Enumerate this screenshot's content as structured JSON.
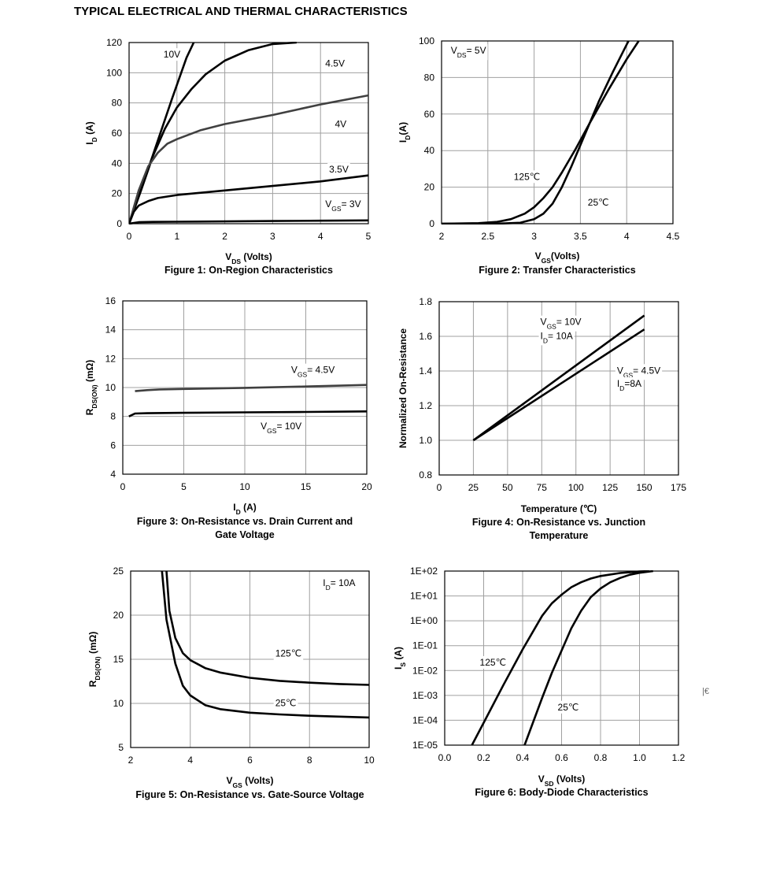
{
  "page": {
    "title": "TYPICAL ELECTRICAL AND THERMAL CHARACTERISTICS",
    "stray_mark": "|€"
  },
  "chart_data": [
    {
      "id": "fig1",
      "type": "line",
      "caption": "Figure 1: On-Region Characteristics",
      "xlabel_main": "V",
      "xlabel_sub": "DS",
      "xlabel_rest": " (Volts)",
      "ylabel_main": "I",
      "ylabel_sub": "D",
      "ylabel_rest": " (A)",
      "xlim": [
        0,
        5
      ],
      "ylim": [
        0,
        120
      ],
      "xticks": [
        "0",
        "1",
        "2",
        "3",
        "4",
        "5"
      ],
      "yticks": [
        "0",
        "20",
        "40",
        "60",
        "80",
        "100",
        "120"
      ],
      "series": [
        {
          "name": "10V",
          "x": [
            0,
            0.3,
            0.6,
            0.9,
            1.2,
            1.35
          ],
          "y": [
            0,
            27,
            55,
            83,
            110,
            120
          ]
        },
        {
          "name": "4.5V",
          "x": [
            0,
            0.25,
            0.5,
            0.75,
            1,
            1.3,
            1.6,
            2,
            2.5,
            3,
            3.5
          ],
          "y": [
            0,
            22,
            45,
            63,
            77,
            89,
            99,
            108,
            115,
            119,
            120
          ]
        },
        {
          "name": "4V",
          "x": [
            0,
            0.2,
            0.4,
            0.6,
            0.8,
            1,
            1.5,
            2,
            3,
            4,
            5
          ],
          "y": [
            0,
            22,
            38,
            47,
            53,
            56,
            62,
            66,
            72,
            79,
            85
          ]
        },
        {
          "name": "3.5V",
          "x": [
            0,
            0.1,
            0.2,
            0.4,
            0.6,
            1,
            2,
            3,
            4,
            5
          ],
          "y": [
            0,
            8,
            12,
            15,
            17,
            19,
            22,
            25,
            28,
            32
          ]
        },
        {
          "name": "V_GS= 3V",
          "x": [
            0,
            0.2,
            0.5,
            1,
            2,
            3,
            4,
            5
          ],
          "y": [
            0,
            1,
            1.2,
            1.3,
            1.5,
            1.8,
            2,
            2.2
          ]
        }
      ],
      "labels": [
        {
          "text": "10V",
          "x": 0.72,
          "y": 110
        },
        {
          "text": "4.5V",
          "x": 4.1,
          "y": 104
        },
        {
          "text": "4V",
          "x": 4.3,
          "y": 64
        },
        {
          "text": "3.5V",
          "x": 4.18,
          "y": 34
        },
        {
          "main": "V",
          "sub": "GS",
          "rest": "= 3V",
          "x": 4.1,
          "y": 11
        }
      ]
    },
    {
      "id": "fig2",
      "type": "line",
      "caption": "Figure 2: Transfer Characteristics",
      "xlabel_main": "V",
      "xlabel_sub": "GS",
      "xlabel_rest": "(Volts)",
      "ylabel_main": "I",
      "ylabel_sub": "D",
      "ylabel_rest": "(A)",
      "xlim": [
        2,
        4.5
      ],
      "ylim": [
        0,
        100
      ],
      "xticks": [
        "2",
        "2.5",
        "3",
        "3.5",
        "4",
        "4.5"
      ],
      "yticks": [
        "0",
        "20",
        "40",
        "60",
        "80",
        "100"
      ],
      "series": [
        {
          "name": "125℃",
          "x": [
            2,
            2.4,
            2.6,
            2.75,
            2.9,
            3,
            3.1,
            3.2,
            3.3,
            3.45,
            3.6,
            3.8,
            4,
            4.13
          ],
          "y": [
            0,
            0.3,
            1,
            2.5,
            5.5,
            9,
            14,
            20,
            28,
            41,
            55,
            73,
            90,
            100
          ]
        },
        {
          "name": "25℃",
          "x": [
            2,
            2.6,
            2.85,
            3,
            3.1,
            3.2,
            3.3,
            3.4,
            3.5,
            3.6,
            3.7,
            3.85,
            4,
            4.02
          ],
          "y": [
            0,
            0,
            0.5,
            2.5,
            5.5,
            11,
            20,
            31,
            43,
            55,
            67,
            83,
            98,
            100
          ]
        }
      ],
      "labels": [
        {
          "main": "V",
          "sub": "DS",
          "rest": "= 5V",
          "x": 2.1,
          "y": 93
        },
        {
          "text": "125℃",
          "x": 2.78,
          "y": 24
        },
        {
          "text": "25℃",
          "x": 3.58,
          "y": 10
        }
      ]
    },
    {
      "id": "fig3",
      "type": "line",
      "caption": "Figure 3: On-Resistance vs. Drain Current and",
      "caption2": "Gate Voltage",
      "xlabel_main": "I",
      "xlabel_sub": "D",
      "xlabel_rest": " (A)",
      "ylabel_main": "R",
      "ylabel_sub": "DS(ON)",
      "ylabel_rest": " (mΩ)",
      "xlim": [
        0,
        20
      ],
      "ylim": [
        4,
        16
      ],
      "xticks": [
        "0",
        "5",
        "10",
        "15",
        "20"
      ],
      "yticks": [
        "4",
        "6",
        "8",
        "10",
        "12",
        "14",
        "16"
      ],
      "series": [
        {
          "name": "V_GS= 4.5V",
          "x": [
            1,
            2,
            3,
            5,
            10,
            15,
            20
          ],
          "y": [
            9.75,
            9.82,
            9.87,
            9.9,
            9.98,
            10.07,
            10.18
          ]
        },
        {
          "name": "V_GS= 10V",
          "x": [
            0.5,
            1,
            2,
            5,
            10,
            15,
            20
          ],
          "y": [
            8,
            8.2,
            8.22,
            8.25,
            8.28,
            8.31,
            8.35
          ]
        }
      ],
      "labels": [
        {
          "main": "V",
          "sub": "GS",
          "rest": "= 4.5V",
          "x": 13.8,
          "y": 11.0
        },
        {
          "main": "V",
          "sub": "GS",
          "rest": "= 10V",
          "x": 11.3,
          "y": 7.1
        }
      ]
    },
    {
      "id": "fig4",
      "type": "line",
      "caption": "Figure 4: On-Resistance vs. Junction",
      "caption2": "Temperature",
      "xlabel_main": "Temperature (℃)",
      "xlabel_sub": "",
      "xlabel_rest": "",
      "ylabel_main": "Normalized On-Resistance",
      "ylabel_sub": "",
      "ylabel_rest": "",
      "xlim": [
        0,
        175
      ],
      "ylim": [
        0.8,
        1.8
      ],
      "xticks": [
        "0",
        "25",
        "50",
        "75",
        "100",
        "125",
        "150",
        "175"
      ],
      "yticks": [
        "0.8",
        "1.0",
        "1.2",
        "1.4",
        "1.6",
        "1.8"
      ],
      "series": [
        {
          "name": "V_GS= 10V, I_D= 10A",
          "x": [
            25,
            150
          ],
          "y": [
            1.0,
            1.72
          ]
        },
        {
          "name": "V_GS= 4.5V, I_D=8A",
          "x": [
            25,
            150
          ],
          "y": [
            1.0,
            1.64
          ]
        }
      ],
      "labels": [
        {
          "main": "V",
          "sub": "GS",
          "rest": "= 10V",
          "x": 74,
          "y": 1.665
        },
        {
          "main": "I",
          "sub": "D",
          "rest": "= 10A",
          "x": 74,
          "y": 1.585
        },
        {
          "main": "V",
          "sub": "GS",
          "rest": "= 4.5V",
          "x": 130,
          "y": 1.385
        },
        {
          "main": "I",
          "sub": "D",
          "rest": "=8A",
          "x": 130,
          "y": 1.31
        }
      ]
    },
    {
      "id": "fig5",
      "type": "line",
      "caption": "Figure 5: On-Resistance vs. Gate-Source Voltage",
      "xlabel_main": "V",
      "xlabel_sub": "GS",
      "xlabel_rest": " (Volts)",
      "ylabel_main": "R",
      "ylabel_sub": "DS(ON)",
      "ylabel_rest": " (mΩ)",
      "xlim": [
        2,
        10
      ],
      "ylim": [
        5,
        25
      ],
      "xticks": [
        "2",
        "4",
        "6",
        "8",
        "10"
      ],
      "yticks": [
        "5",
        "10",
        "15",
        "20",
        "25"
      ],
      "series": [
        {
          "name": "125℃",
          "x": [
            3.2,
            3.3,
            3.5,
            3.75,
            4,
            4.5,
            5,
            6,
            7,
            8,
            9,
            10
          ],
          "y": [
            25,
            20.5,
            17.4,
            15.7,
            14.9,
            14,
            13.5,
            12.9,
            12.55,
            12.35,
            12.2,
            12.1
          ]
        },
        {
          "name": "25℃",
          "x": [
            3.05,
            3.2,
            3.5,
            3.75,
            4,
            4.5,
            5,
            6,
            7,
            8,
            9,
            10
          ],
          "y": [
            25,
            19.5,
            14.5,
            12,
            10.9,
            9.8,
            9.35,
            8.95,
            8.75,
            8.6,
            8.5,
            8.4
          ]
        }
      ],
      "labels": [
        {
          "main": "I",
          "sub": "D",
          "rest": "= 10A",
          "x": 8.45,
          "y": 23.3
        },
        {
          "text": "125℃",
          "x": 6.85,
          "y": 15.3
        },
        {
          "text": "25℃",
          "x": 6.85,
          "y": 9.7
        }
      ]
    },
    {
      "id": "fig6",
      "type": "line",
      "yscale": "log",
      "caption": "Figure 6: Body-Diode Characteristics",
      "xlabel_main": "V",
      "xlabel_sub": "SD",
      "xlabel_rest": " (Volts)",
      "ylabel_main": "I",
      "ylabel_sub": "S",
      "ylabel_rest": " (A)",
      "xlim": [
        0,
        1.2
      ],
      "ylim": [
        -5,
        2
      ],
      "xticks": [
        "0.0",
        "0.2",
        "0.4",
        "0.6",
        "0.8",
        "1.0",
        "1.2"
      ],
      "yticks": [
        "1E-05",
        "1E-04",
        "1E-03",
        "1E-02",
        "1E-01",
        "1E+00",
        "1E+01",
        "1E+02"
      ],
      "series": [
        {
          "name": "125℃",
          "x": [
            0.14,
            0.2,
            0.3,
            0.4,
            0.5,
            0.55,
            0.6,
            0.65,
            0.7,
            0.75,
            0.8,
            0.9,
            1.0,
            1.05
          ],
          "y_log10": [
            -5,
            -4.1,
            -2.6,
            -1.15,
            0.2,
            0.7,
            1.05,
            1.35,
            1.55,
            1.7,
            1.8,
            1.92,
            1.98,
            2
          ]
        },
        {
          "name": "25℃",
          "x": [
            0.41,
            0.5,
            0.55,
            0.6,
            0.65,
            0.7,
            0.75,
            0.8,
            0.85,
            0.9,
            0.95,
            1.0,
            1.07
          ],
          "y_log10": [
            -5,
            -3.1,
            -2.1,
            -1.2,
            -0.3,
            0.4,
            0.95,
            1.3,
            1.55,
            1.72,
            1.85,
            1.93,
            2
          ]
        }
      ],
      "labels": [
        {
          "text": "125℃",
          "x": 0.18,
          "y_log10": -1.8
        },
        {
          "text": "25℃",
          "x": 0.58,
          "y_log10": -3.6
        }
      ]
    }
  ]
}
